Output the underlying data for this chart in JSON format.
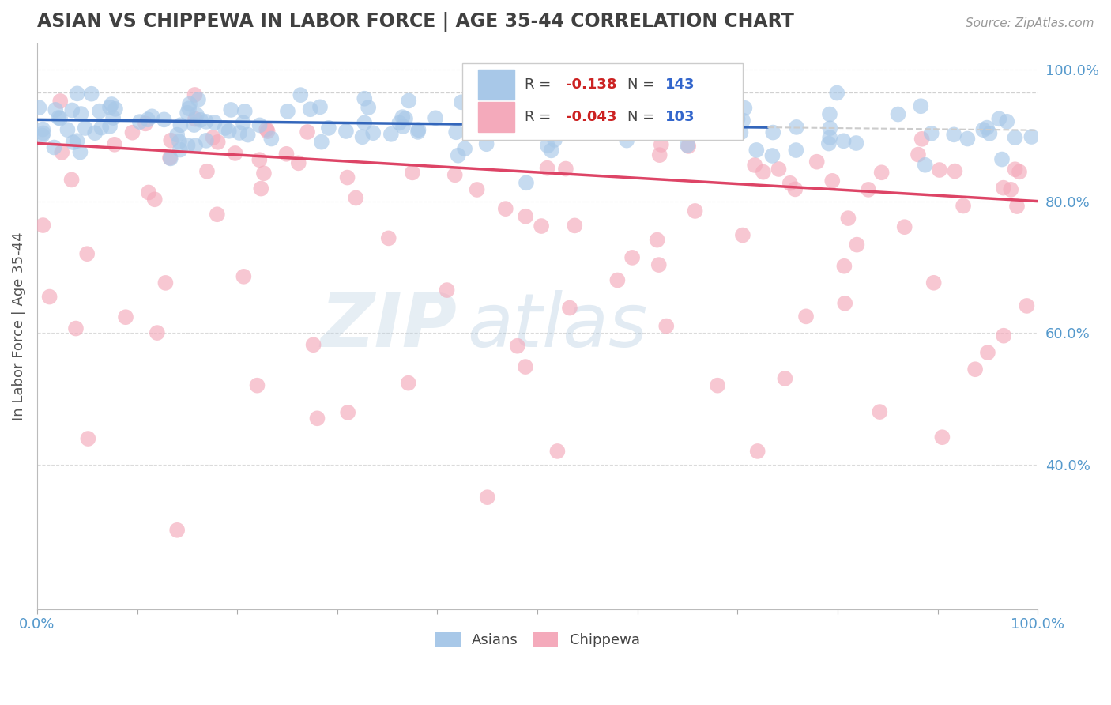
{
  "title": "ASIAN VS CHIPPEWA IN LABOR FORCE | AGE 35-44 CORRELATION CHART",
  "source_text": "Source: ZipAtlas.com",
  "ylabel": "In Labor Force | Age 35-44",
  "xlim": [
    0.0,
    1.0
  ],
  "ylim": [
    0.18,
    1.04
  ],
  "r_asian": -0.138,
  "n_asian": 143,
  "r_chippewa": -0.043,
  "n_chippewa": 103,
  "asian_color": "#a8c8e8",
  "chippewa_color": "#f4aabb",
  "asian_line_color": "#3366bb",
  "chippewa_line_color": "#dd4466",
  "title_color": "#404040",
  "axis_label_color": "#5599cc",
  "grid_color": "#cccccc",
  "background_color": "#ffffff",
  "watermark_color": "#ccdded",
  "right_ytick_labels": [
    "40.0%",
    "60.0%",
    "80.0%",
    "100.0%"
  ],
  "right_ytick_values": [
    0.4,
    0.6,
    0.8,
    1.0
  ],
  "figsize": [
    14.06,
    8.92
  ],
  "dpi": 100,
  "asian_line_start_y": 0.924,
  "asian_line_end_y": 0.908,
  "chippewa_line_start_y": 0.888,
  "chippewa_line_end_y": 0.8,
  "dashed_line_y": 0.965
}
